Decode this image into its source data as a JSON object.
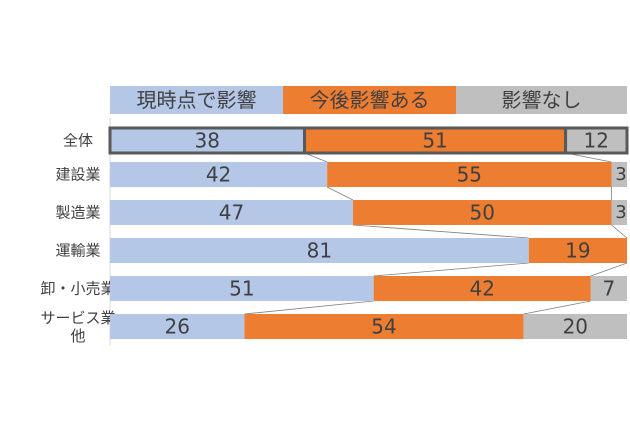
{
  "chart_data": {
    "type": "bar",
    "stacked": "percent",
    "orientation": "horizontal",
    "categories": [
      "全体",
      "建設業",
      "製造業",
      "運輸業",
      "卸・小売業",
      "サービス業\n他"
    ],
    "series": [
      {
        "name": "現時点で影響",
        "color": "#b4c7e7",
        "values": [
          38,
          42,
          47,
          81,
          51,
          26
        ]
      },
      {
        "name": "今後影響ある",
        "color": "#ed7d31",
        "values": [
          51,
          55,
          50,
          19,
          42,
          54
        ]
      },
      {
        "name": "影響なし",
        "color": "#bfbfbf",
        "values": [
          12,
          3,
          3,
          0,
          7,
          20
        ]
      }
    ],
    "legend_position": "top",
    "highlighted_category": "全体",
    "series_lines": true,
    "grid": false
  }
}
